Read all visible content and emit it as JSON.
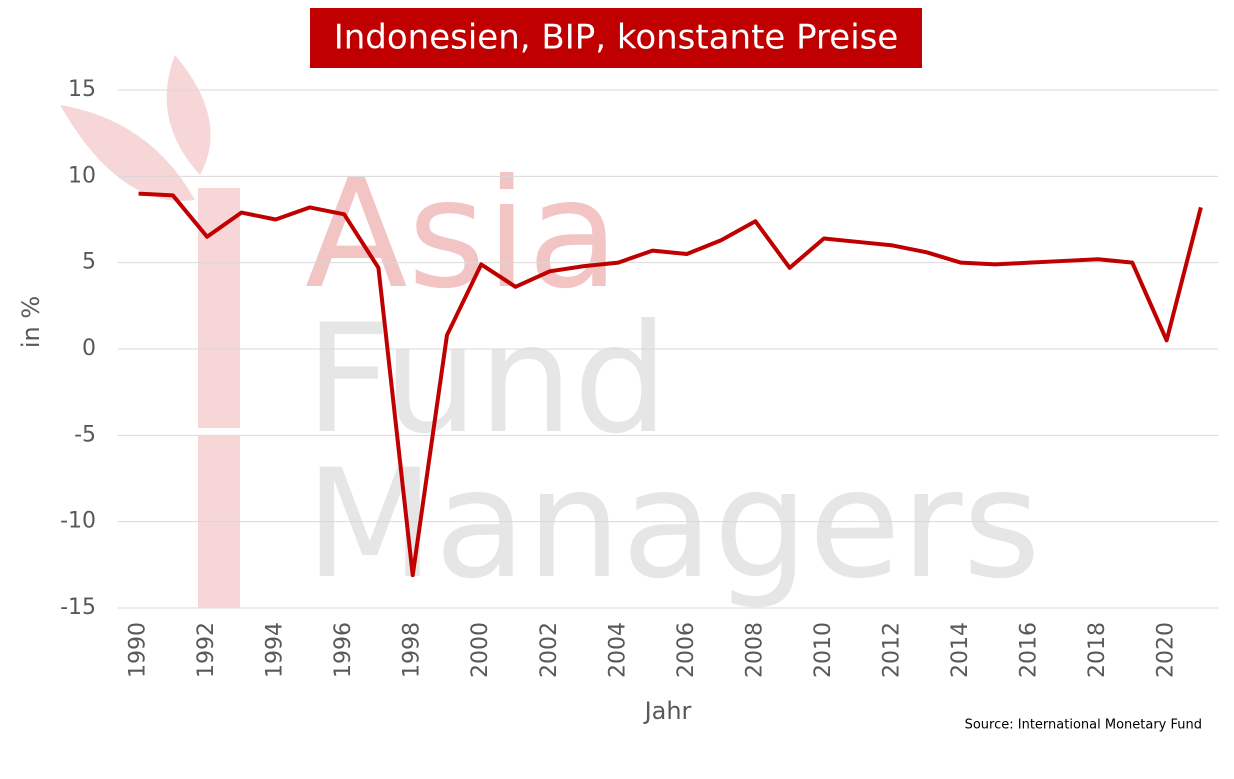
{
  "chart_data": {
    "type": "line",
    "title": "Indonesien, BIP, konstante Preise",
    "x_label": "Jahr",
    "y_label": "in %",
    "source": "Source: International Monetary Fund",
    "watermark": [
      "Asia",
      "Fund",
      "Managers"
    ],
    "x": [
      1990,
      1991,
      1992,
      1993,
      1994,
      1995,
      1996,
      1997,
      1998,
      1999,
      2000,
      2001,
      2002,
      2003,
      2004,
      2005,
      2006,
      2007,
      2008,
      2009,
      2010,
      2011,
      2012,
      2013,
      2014,
      2015,
      2016,
      2017,
      2018,
      2019,
      2020,
      2021
    ],
    "values": [
      9.0,
      8.9,
      6.5,
      7.9,
      7.5,
      8.2,
      7.8,
      4.7,
      -13.1,
      0.8,
      4.9,
      3.6,
      4.5,
      4.8,
      5.0,
      5.7,
      5.5,
      6.3,
      7.4,
      4.7,
      6.4,
      6.2,
      6.0,
      5.6,
      5.0,
      4.9,
      5.0,
      5.1,
      5.2,
      5.0,
      0.5,
      8.2
    ],
    "color": "#c00000",
    "xlim": [
      1989.4,
      2021.5
    ],
    "xticks": [
      1990,
      1992,
      1994,
      1996,
      1998,
      2000,
      2002,
      2004,
      2006,
      2008,
      2010,
      2012,
      2014,
      2016,
      2018,
      2020
    ],
    "ylim": [
      -15,
      15
    ],
    "yticks": [
      -15,
      -10,
      -5,
      0,
      5,
      10,
      15
    ],
    "grid": true
  }
}
